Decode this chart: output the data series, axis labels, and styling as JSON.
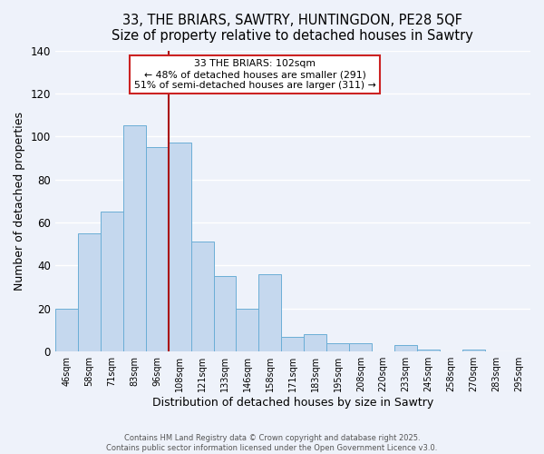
{
  "title": "33, THE BRIARS, SAWTRY, HUNTINGDON, PE28 5QF",
  "subtitle": "Size of property relative to detached houses in Sawtry",
  "xlabel": "Distribution of detached houses by size in Sawtry",
  "ylabel": "Number of detached properties",
  "categories": [
    "46sqm",
    "58sqm",
    "71sqm",
    "83sqm",
    "96sqm",
    "108sqm",
    "121sqm",
    "133sqm",
    "146sqm",
    "158sqm",
    "171sqm",
    "183sqm",
    "195sqm",
    "208sqm",
    "220sqm",
    "233sqm",
    "245sqm",
    "258sqm",
    "270sqm",
    "283sqm",
    "295sqm"
  ],
  "values": [
    20,
    55,
    65,
    105,
    95,
    97,
    51,
    35,
    20,
    36,
    7,
    8,
    4,
    4,
    0,
    3,
    1,
    0,
    1,
    0,
    0
  ],
  "bar_color": "#c5d8ee",
  "bar_edge_color": "#6baed6",
  "background_color": "#eef2fa",
  "grid_color": "#ffffff",
  "annotation_box_color": "#ffffff",
  "annotation_box_edge": "#cc2222",
  "marker_line_color": "#aa1111",
  "annotation_line1": "33 THE BRIARS: 102sqm",
  "annotation_line2": "← 48% of detached houses are smaller (291)",
  "annotation_line3": "51% of semi-detached houses are larger (311) →",
  "ylim": [
    0,
    140
  ],
  "yticks": [
    0,
    20,
    40,
    60,
    80,
    100,
    120,
    140
  ],
  "footer1": "Contains HM Land Registry data © Crown copyright and database right 2025.",
  "footer2": "Contains public sector information licensed under the Open Government Licence v3.0."
}
